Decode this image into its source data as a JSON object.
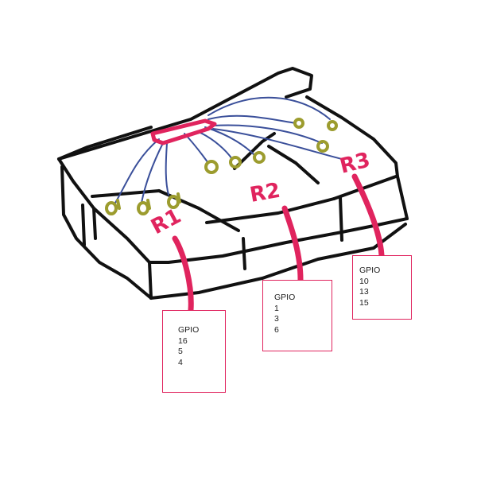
{
  "regions": [
    {
      "id": "R1",
      "label": "R1",
      "gpio_heading": "GPIO",
      "pins": [
        "16",
        "5",
        "4"
      ]
    },
    {
      "id": "R2",
      "label": "R2",
      "gpio_heading": "GPIO",
      "pins": [
        "1",
        "3",
        "6"
      ]
    },
    {
      "id": "R3",
      "label": "R3",
      "gpio_heading": "GPIO",
      "pins": [
        "10",
        "13",
        "15"
      ]
    }
  ],
  "colors": {
    "outline": "#111111",
    "wire": "#3a4f9a",
    "connector": "#e0245e",
    "pad": "#9c9c2e",
    "callout": "#e0245e"
  }
}
